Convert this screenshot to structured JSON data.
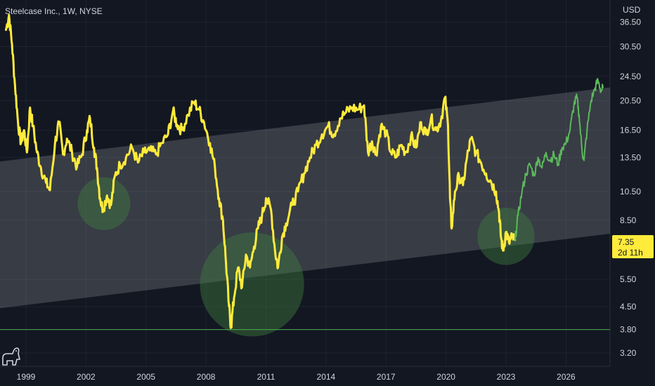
{
  "chart_data": {
    "type": "line",
    "title": "Steelcase Inc., 1W, NYSE",
    "currency": "USD",
    "y_scale": "log",
    "ylim": [
      2.9,
      43
    ],
    "xlim": [
      1997.7,
      2028.2
    ],
    "y_ticks": [
      "36.50",
      "30.50",
      "24.50",
      "20.50",
      "16.50",
      "13.50",
      "10.50",
      "8.50",
      "5.50",
      "4.50",
      "3.80",
      "3.20"
    ],
    "x_ticks": [
      "1999",
      "2002",
      "2005",
      "2008",
      "2011",
      "2014",
      "2017",
      "2020",
      "2023",
      "2026"
    ],
    "colors": {
      "background": "#131722",
      "history": "#ffeb3b",
      "projection": "#5cb85c",
      "channel": "#ffffff",
      "support_line": "#4caf50",
      "highlight": "#3d7a3d",
      "price_tag": "#ffeb3b"
    },
    "last_price": {
      "value": "7.35",
      "countdown": "2d 11h"
    },
    "support_level": 3.8,
    "channel": {
      "upper": [
        [
          1997.7,
          13.1
        ],
        [
          2028.2,
          22.6
        ]
      ],
      "lower": [
        [
          1997.7,
          4.45
        ],
        [
          2028.2,
          7.7
        ]
      ]
    },
    "highlights": [
      {
        "x": 2002.9,
        "y": 9.6
      },
      {
        "x": 2010.3,
        "y": 5.3
      },
      {
        "x": 2023.0,
        "y": 7.55
      }
    ],
    "series": [
      {
        "role": "history",
        "points": [
          [
            1998.0,
            34.5
          ],
          [
            1998.15,
            38.5
          ],
          [
            1998.3,
            31.0
          ],
          [
            1998.45,
            23.0
          ],
          [
            1998.6,
            17.5
          ],
          [
            1998.75,
            15.0
          ],
          [
            1998.9,
            16.5
          ],
          [
            1999.05,
            14.0
          ],
          [
            1999.2,
            19.5
          ],
          [
            1999.35,
            17.0
          ],
          [
            1999.55,
            14.0
          ],
          [
            1999.75,
            12.5
          ],
          [
            2000.0,
            11.2
          ],
          [
            2000.2,
            10.6
          ],
          [
            2000.45,
            15.0
          ],
          [
            2000.65,
            17.5
          ],
          [
            2000.85,
            13.8
          ],
          [
            2001.05,
            15.5
          ],
          [
            2001.3,
            14.0
          ],
          [
            2001.55,
            12.6
          ],
          [
            2001.8,
            13.8
          ],
          [
            2002.05,
            16.5
          ],
          [
            2002.2,
            18.0
          ],
          [
            2002.4,
            14.5
          ],
          [
            2002.55,
            12.5
          ],
          [
            2002.7,
            10.0
          ],
          [
            2002.85,
            9.2
          ],
          [
            2003.05,
            10.2
          ],
          [
            2003.25,
            9.5
          ],
          [
            2003.45,
            11.8
          ],
          [
            2003.7,
            12.8
          ],
          [
            2004.0,
            13.5
          ],
          [
            2004.3,
            14.5
          ],
          [
            2004.6,
            13.0
          ],
          [
            2004.9,
            14.0
          ],
          [
            2005.2,
            14.2
          ],
          [
            2005.5,
            13.8
          ],
          [
            2005.8,
            15.0
          ],
          [
            2006.1,
            16.0
          ],
          [
            2006.35,
            19.0
          ],
          [
            2006.55,
            17.2
          ],
          [
            2006.8,
            16.5
          ],
          [
            2007.1,
            18.5
          ],
          [
            2007.4,
            20.3
          ],
          [
            2007.65,
            19.2
          ],
          [
            2007.9,
            17.5
          ],
          [
            2008.2,
            15.0
          ],
          [
            2008.45,
            12.5
          ],
          [
            2008.65,
            10.0
          ],
          [
            2008.85,
            8.5
          ],
          [
            2009.0,
            6.2
          ],
          [
            2009.15,
            4.5
          ],
          [
            2009.25,
            3.85
          ],
          [
            2009.4,
            4.8
          ],
          [
            2009.6,
            6.0
          ],
          [
            2009.8,
            5.2
          ],
          [
            2010.0,
            6.6
          ],
          [
            2010.2,
            6.0
          ],
          [
            2010.4,
            7.0
          ],
          [
            2010.6,
            8.0
          ],
          [
            2010.8,
            8.8
          ],
          [
            2011.0,
            10.0
          ],
          [
            2011.25,
            9.2
          ],
          [
            2011.45,
            6.8
          ],
          [
            2011.6,
            6.0
          ],
          [
            2011.8,
            7.5
          ],
          [
            2012.0,
            8.3
          ],
          [
            2012.3,
            9.5
          ],
          [
            2012.6,
            10.5
          ],
          [
            2012.9,
            12.0
          ],
          [
            2013.2,
            13.5
          ],
          [
            2013.5,
            14.8
          ],
          [
            2013.8,
            16.0
          ],
          [
            2014.1,
            17.0
          ],
          [
            2014.4,
            16.0
          ],
          [
            2014.7,
            18.0
          ],
          [
            2015.0,
            18.8
          ],
          [
            2015.3,
            19.5
          ],
          [
            2015.6,
            19.2
          ],
          [
            2015.9,
            19.8
          ],
          [
            2016.1,
            14.0
          ],
          [
            2016.3,
            15.2
          ],
          [
            2016.5,
            13.8
          ],
          [
            2016.75,
            17.0
          ],
          [
            2017.0,
            16.2
          ],
          [
            2017.25,
            14.0
          ],
          [
            2017.5,
            13.5
          ],
          [
            2017.75,
            14.8
          ],
          [
            2018.0,
            14.0
          ],
          [
            2018.25,
            15.8
          ],
          [
            2018.5,
            14.5
          ],
          [
            2018.75,
            17.5
          ],
          [
            2019.0,
            16.0
          ],
          [
            2019.25,
            18.0
          ],
          [
            2019.5,
            16.5
          ],
          [
            2019.75,
            17.8
          ],
          [
            2019.95,
            21.0
          ],
          [
            2020.1,
            17.0
          ],
          [
            2020.2,
            10.0
          ],
          [
            2020.28,
            8.0
          ],
          [
            2020.45,
            10.5
          ],
          [
            2020.65,
            11.8
          ],
          [
            2020.85,
            11.0
          ],
          [
            2021.05,
            13.5
          ],
          [
            2021.25,
            15.5
          ],
          [
            2021.5,
            14.0
          ],
          [
            2021.75,
            13.0
          ],
          [
            2022.0,
            12.0
          ],
          [
            2022.25,
            11.3
          ],
          [
            2022.5,
            10.5
          ],
          [
            2022.65,
            9.0
          ],
          [
            2022.75,
            7.5
          ],
          [
            2022.85,
            6.8
          ],
          [
            2023.0,
            7.8
          ],
          [
            2023.15,
            7.2
          ],
          [
            2023.3,
            7.5
          ],
          [
            2023.45,
            7.35
          ]
        ]
      },
      {
        "role": "projection",
        "points": [
          [
            2023.45,
            7.35
          ],
          [
            2023.6,
            8.8
          ],
          [
            2023.8,
            10.5
          ],
          [
            2024.0,
            12.0
          ],
          [
            2024.2,
            12.8
          ],
          [
            2024.4,
            11.8
          ],
          [
            2024.6,
            13.5
          ],
          [
            2024.8,
            12.5
          ],
          [
            2025.0,
            14.0
          ],
          [
            2025.2,
            13.2
          ],
          [
            2025.4,
            13.8
          ],
          [
            2025.6,
            12.8
          ],
          [
            2025.8,
            14.5
          ],
          [
            2026.0,
            15.0
          ],
          [
            2026.2,
            16.5
          ],
          [
            2026.4,
            20.0
          ],
          [
            2026.55,
            21.0
          ],
          [
            2026.65,
            18.5
          ],
          [
            2026.8,
            14.2
          ],
          [
            2026.9,
            13.2
          ],
          [
            2027.05,
            16.5
          ],
          [
            2027.25,
            20.5
          ],
          [
            2027.45,
            22.5
          ],
          [
            2027.6,
            23.8
          ],
          [
            2027.75,
            22.0
          ],
          [
            2027.85,
            22.6
          ]
        ]
      }
    ]
  }
}
